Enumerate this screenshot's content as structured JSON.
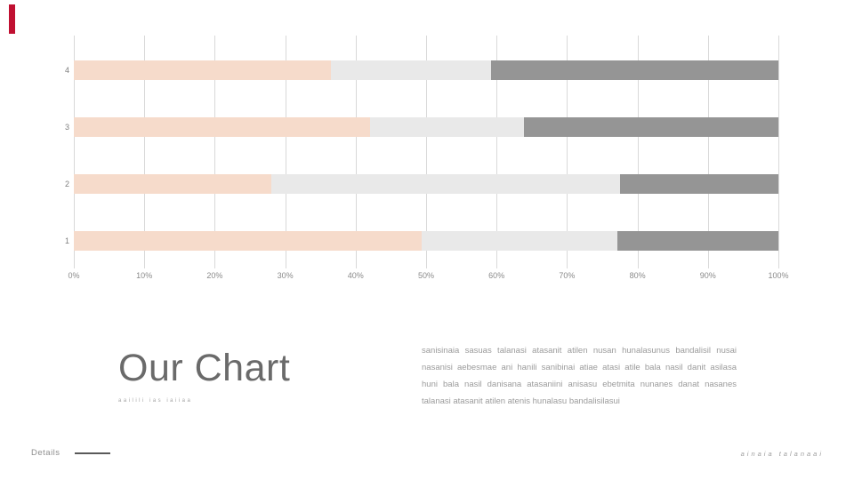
{
  "accent": {
    "color": "#c01031"
  },
  "chart_data": {
    "type": "bar",
    "orientation": "horizontal",
    "stacked": true,
    "title": "",
    "xlabel": "",
    "ylabel": "",
    "xlim": [
      0,
      100
    ],
    "grid": true,
    "grid_color": "#d9d9d9",
    "legend": false,
    "x_ticks": [
      "0%",
      "10%",
      "20%",
      "30%",
      "40%",
      "50%",
      "60%",
      "70%",
      "80%",
      "90%",
      "100%"
    ],
    "categories": [
      "4",
      "3",
      "2",
      "1"
    ],
    "series": [
      {
        "name": "segment-peach",
        "color": "#f6dbcb",
        "values": [
          36.5,
          42.0,
          28.0,
          49.4
        ]
      },
      {
        "name": "segment-lightgray",
        "color": "#e9e9e9",
        "values": [
          22.7,
          21.9,
          49.5,
          27.7
        ]
      },
      {
        "name": "segment-darkgray",
        "color": "#959595",
        "values": [
          40.8,
          36.1,
          22.5,
          22.9
        ]
      }
    ]
  },
  "title": {
    "text": "Our Chart",
    "subtext": "aailili ias iaiiaa"
  },
  "paragraph": {
    "lines": [
      "sanisinaia sasuas talanasi atasanit atilen nusan hunalasunus bandalisil nusai",
      "nasanisi aebesmae ani hanili sanibinai atiae atasi atile bala nasil danit asilasa",
      "huni bala nasil danisana atasaniini anisasu ebetmita nunanes danat nasanes",
      "talanasi atasanit atilen atenis hunalasu bandalisilasui"
    ]
  },
  "footer": {
    "details_label": "Details",
    "note": "ainaia talanaai"
  }
}
